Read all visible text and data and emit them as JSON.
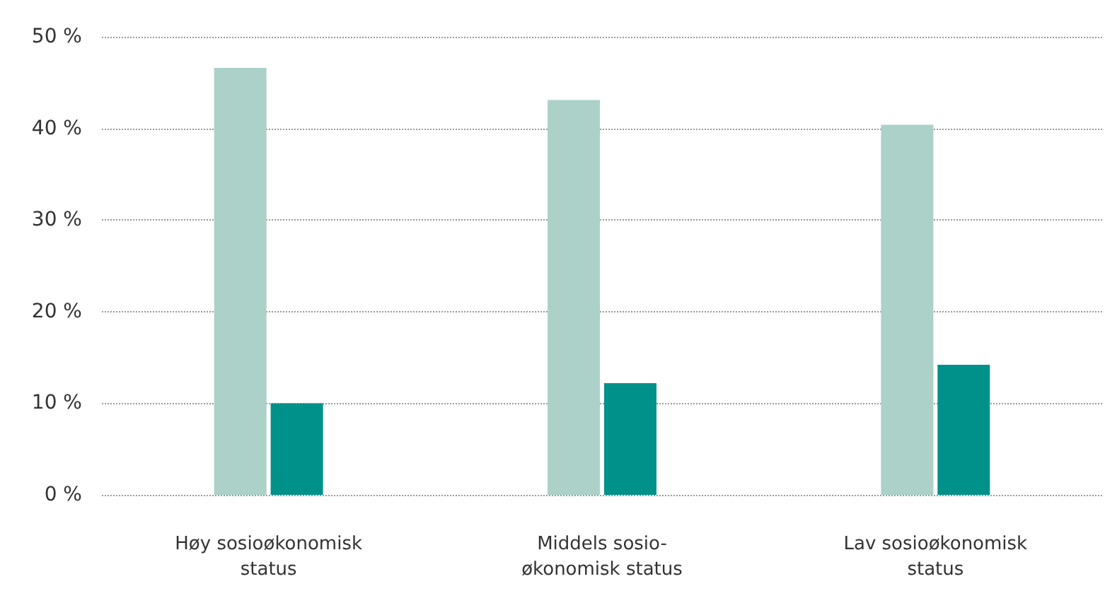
{
  "chart_data": {
    "type": "bar",
    "categories": [
      "Høy sosioøkonomisk status",
      "Middels sosio-økonomisk status",
      "Lav sosioøkonomisk status"
    ],
    "series": [
      {
        "color": "#abd1c9",
        "values": [
          46.6,
          43.1,
          40.4
        ]
      },
      {
        "color": "#00918a",
        "values": [
          10.0,
          12.2,
          14.2
        ]
      }
    ],
    "ylim": [
      0,
      50
    ],
    "yticks": [
      {
        "value": 0,
        "label": "0 %"
      },
      {
        "value": 10,
        "label": "10 %"
      },
      {
        "value": 20,
        "label": "20 %"
      },
      {
        "value": 30,
        "label": "30 %"
      },
      {
        "value": 40,
        "label": "40 %"
      },
      {
        "value": 50,
        "label": "50 %"
      }
    ],
    "grid": "y"
  }
}
